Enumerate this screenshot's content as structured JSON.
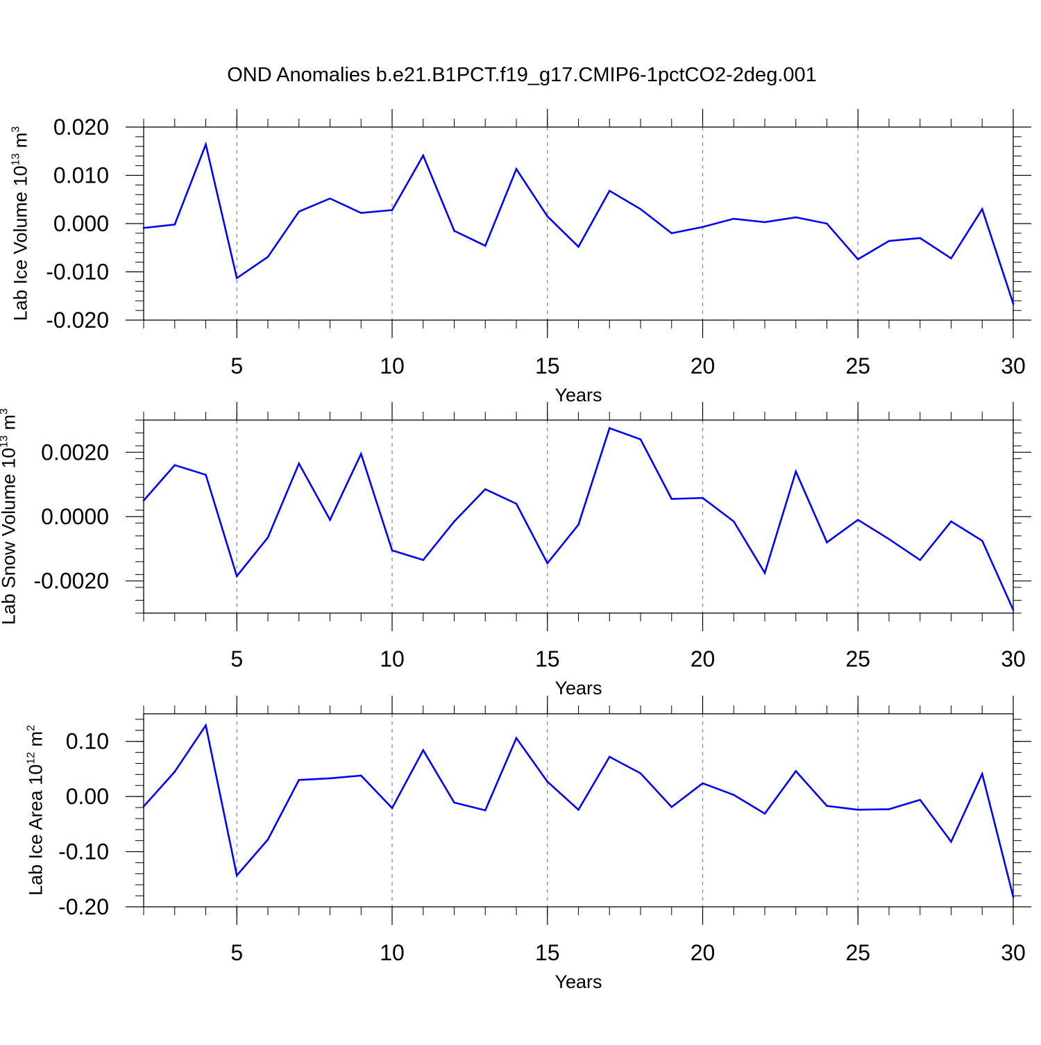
{
  "title": "OND Anomalies b.e21.B1PCT.f19_g17.CMIP6-1pctCO2-2deg.001",
  "colors": {
    "line": "#0000ff",
    "axes": "#000000",
    "grid": "#808080"
  },
  "chart_data": [
    {
      "type": "line",
      "name": "lab-ice-volume",
      "ylabel": {
        "pre": "Lab Ice Volume 10",
        "exp1": "13",
        "mid": " m",
        "exp2": "3"
      },
      "xlabel": "Years",
      "xlim": [
        2,
        30
      ],
      "ylim": [
        -0.02,
        0.02
      ],
      "xticks": [
        5,
        10,
        15,
        20,
        25,
        30
      ],
      "xtick_labels": [
        "5",
        "10",
        "15",
        "20",
        "25",
        "30"
      ],
      "yticks": [
        -0.02,
        -0.01,
        0.0,
        0.01,
        0.02
      ],
      "ytick_labels": [
        "-0.020",
        "-0.010",
        "0.000",
        "0.010",
        "0.020"
      ],
      "grid_x": true,
      "x": [
        2,
        3,
        4,
        5,
        6,
        7,
        8,
        9,
        10,
        11,
        12,
        13,
        14,
        15,
        16,
        17,
        18,
        19,
        20,
        21,
        22,
        23,
        24,
        25,
        26,
        27,
        28,
        29,
        30
      ],
      "values": [
        -0.0009,
        -0.0002,
        0.0164,
        -0.0113,
        -0.0069,
        0.0025,
        0.0052,
        0.0022,
        0.0028,
        0.0141,
        -0.0015,
        -0.0046,
        0.0113,
        0.0015,
        -0.0048,
        0.0068,
        0.003,
        -0.002,
        -0.0007,
        0.001,
        0.0003,
        0.0013,
        0.0,
        -0.0074,
        -0.0036,
        -0.003,
        -0.0072,
        0.003,
        -0.0166
      ]
    },
    {
      "type": "line",
      "name": "lab-snow-volume",
      "ylabel": {
        "pre": "Lab Snow Volume 10",
        "exp1": "13",
        "mid": " m",
        "exp2": "3"
      },
      "xlabel": "Years",
      "xlim": [
        2,
        30
      ],
      "ylim": [
        -0.003,
        0.003
      ],
      "xticks": [
        5,
        10,
        15,
        20,
        25,
        30
      ],
      "xtick_labels": [
        "5",
        "10",
        "15",
        "20",
        "25",
        "30"
      ],
      "yticks": [
        -0.002,
        0.0,
        0.002
      ],
      "ytick_labels": [
        "-0.0020",
        "0.0000",
        "0.0020"
      ],
      "grid_x": true,
      "x": [
        2,
        3,
        4,
        5,
        6,
        7,
        8,
        9,
        10,
        11,
        12,
        13,
        14,
        15,
        16,
        17,
        18,
        19,
        20,
        21,
        22,
        23,
        24,
        25,
        26,
        27,
        28,
        29,
        30
      ],
      "values": [
        0.0005,
        0.0016,
        0.0013,
        -0.00185,
        -0.00065,
        0.00165,
        -0.0001,
        0.00195,
        -0.00105,
        -0.00135,
        -0.00015,
        0.00085,
        0.0004,
        -0.00145,
        -0.00025,
        0.00275,
        0.0024,
        0.00055,
        0.00058,
        -0.00015,
        -0.00175,
        0.0014,
        -0.0008,
        -0.0001,
        -0.0007,
        -0.00135,
        -0.00015,
        -0.00075,
        -0.0029
      ]
    },
    {
      "type": "line",
      "name": "lab-ice-area",
      "ylabel": {
        "pre": "Lab Ice Area 10",
        "exp1": "12",
        "mid": " m",
        "exp2": "2"
      },
      "xlabel": "Years",
      "xlim": [
        2,
        30
      ],
      "ylim": [
        -0.2,
        0.15
      ],
      "xticks": [
        5,
        10,
        15,
        20,
        25,
        30
      ],
      "xtick_labels": [
        "5",
        "10",
        "15",
        "20",
        "25",
        "30"
      ],
      "yticks": [
        -0.2,
        -0.1,
        0.0,
        0.1
      ],
      "ytick_labels": [
        "-0.20",
        "-0.10",
        "0.00",
        "0.10"
      ],
      "grid_x": true,
      "x": [
        2,
        3,
        4,
        5,
        6,
        7,
        8,
        9,
        10,
        11,
        12,
        13,
        14,
        15,
        16,
        17,
        18,
        19,
        20,
        21,
        22,
        23,
        24,
        25,
        26,
        27,
        28,
        29,
        30
      ],
      "values": [
        -0.018,
        0.045,
        0.129,
        -0.143,
        -0.078,
        0.03,
        0.033,
        0.038,
        -0.021,
        0.084,
        -0.011,
        -0.025,
        0.106,
        0.027,
        -0.024,
        0.072,
        0.042,
        -0.019,
        0.024,
        0.003,
        -0.031,
        0.046,
        -0.017,
        -0.024,
        -0.023,
        -0.006,
        -0.082,
        0.041,
        -0.182
      ]
    }
  ]
}
